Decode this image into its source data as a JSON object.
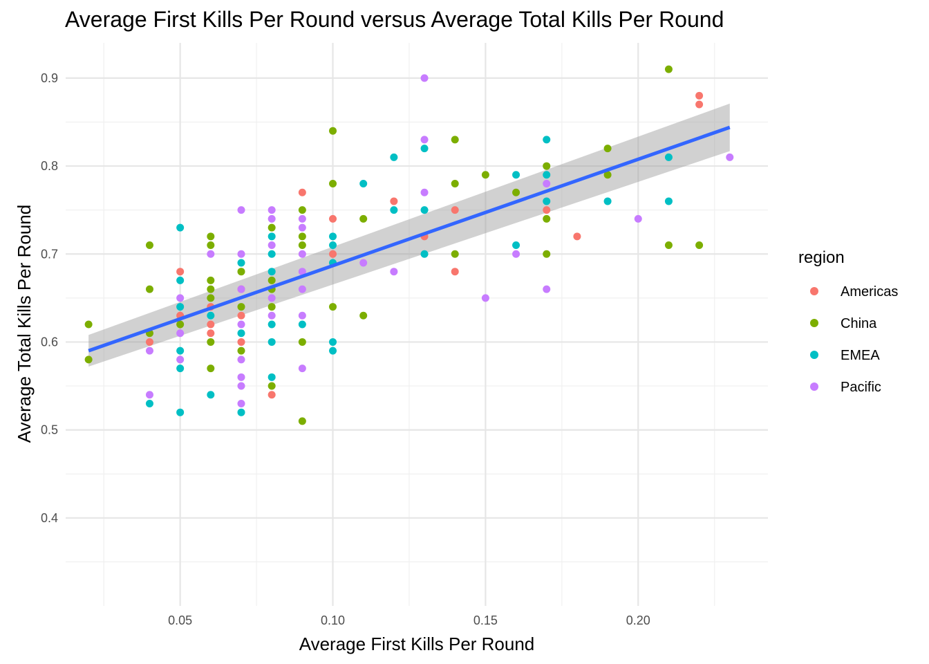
{
  "chart_data": {
    "type": "scatter",
    "title": "Average First Kills Per Round versus Average Total Kills Per Round",
    "xlabel": "Average First Kills Per Round",
    "ylabel": "Average Total Kills Per Round",
    "xlim": [
      0.0125,
      0.2425
    ],
    "ylim": [
      0.3,
      0.94
    ],
    "x_ticks": [
      0.05,
      0.1,
      0.15,
      0.2
    ],
    "x_tick_labels": [
      "0.05",
      "0.10",
      "0.15",
      "0.20"
    ],
    "x_minor_ticks": [
      0.025,
      0.075,
      0.125,
      0.175,
      0.225
    ],
    "y_ticks": [
      0.4,
      0.5,
      0.6,
      0.7,
      0.8,
      0.9
    ],
    "y_tick_labels": [
      "0.4",
      "0.5",
      "0.6",
      "0.7",
      "0.8",
      "0.9"
    ],
    "y_minor_ticks": [
      0.35,
      0.45,
      0.55,
      0.65,
      0.75,
      0.85
    ],
    "grid": true,
    "legend": {
      "title": "region",
      "placement": "right"
    },
    "series": [
      {
        "name": "Americas",
        "color": "#F8766D",
        "points": [
          [
            0.04,
            0.6
          ],
          [
            0.05,
            0.68
          ],
          [
            0.05,
            0.63
          ],
          [
            0.06,
            0.64
          ],
          [
            0.06,
            0.62
          ],
          [
            0.06,
            0.61
          ],
          [
            0.07,
            0.66
          ],
          [
            0.07,
            0.63
          ],
          [
            0.07,
            0.6
          ],
          [
            0.08,
            0.54
          ],
          [
            0.09,
            0.77
          ],
          [
            0.1,
            0.74
          ],
          [
            0.1,
            0.7
          ],
          [
            0.12,
            0.76
          ],
          [
            0.13,
            0.72
          ],
          [
            0.14,
            0.75
          ],
          [
            0.14,
            0.68
          ],
          [
            0.17,
            0.75
          ],
          [
            0.18,
            0.72
          ],
          [
            0.22,
            0.88
          ],
          [
            0.22,
            0.87
          ]
        ]
      },
      {
        "name": "China",
        "color": "#7CAE00",
        "points": [
          [
            0.02,
            0.62
          ],
          [
            0.02,
            0.58
          ],
          [
            0.04,
            0.71
          ],
          [
            0.04,
            0.66
          ],
          [
            0.04,
            0.61
          ],
          [
            0.05,
            0.62
          ],
          [
            0.06,
            0.72
          ],
          [
            0.06,
            0.71
          ],
          [
            0.06,
            0.67
          ],
          [
            0.06,
            0.66
          ],
          [
            0.06,
            0.65
          ],
          [
            0.06,
            0.6
          ],
          [
            0.06,
            0.57
          ],
          [
            0.07,
            0.68
          ],
          [
            0.07,
            0.64
          ],
          [
            0.07,
            0.59
          ],
          [
            0.08,
            0.73
          ],
          [
            0.08,
            0.67
          ],
          [
            0.08,
            0.66
          ],
          [
            0.08,
            0.64
          ],
          [
            0.08,
            0.55
          ],
          [
            0.09,
            0.75
          ],
          [
            0.09,
            0.72
          ],
          [
            0.09,
            0.71
          ],
          [
            0.09,
            0.6
          ],
          [
            0.09,
            0.51
          ],
          [
            0.1,
            0.84
          ],
          [
            0.1,
            0.78
          ],
          [
            0.1,
            0.64
          ],
          [
            0.11,
            0.74
          ],
          [
            0.11,
            0.63
          ],
          [
            0.14,
            0.83
          ],
          [
            0.14,
            0.78
          ],
          [
            0.14,
            0.7
          ],
          [
            0.15,
            0.79
          ],
          [
            0.16,
            0.77
          ],
          [
            0.17,
            0.8
          ],
          [
            0.17,
            0.74
          ],
          [
            0.17,
            0.7
          ],
          [
            0.19,
            0.82
          ],
          [
            0.19,
            0.79
          ],
          [
            0.21,
            0.91
          ],
          [
            0.21,
            0.71
          ],
          [
            0.22,
            0.71
          ]
        ]
      },
      {
        "name": "EMEA",
        "color": "#00BFC4",
        "points": [
          [
            0.04,
            0.53
          ],
          [
            0.05,
            0.73
          ],
          [
            0.05,
            0.67
          ],
          [
            0.05,
            0.64
          ],
          [
            0.05,
            0.59
          ],
          [
            0.05,
            0.57
          ],
          [
            0.05,
            0.52
          ],
          [
            0.06,
            0.63
          ],
          [
            0.06,
            0.54
          ],
          [
            0.07,
            0.69
          ],
          [
            0.07,
            0.61
          ],
          [
            0.07,
            0.52
          ],
          [
            0.08,
            0.72
          ],
          [
            0.08,
            0.7
          ],
          [
            0.08,
            0.68
          ],
          [
            0.08,
            0.62
          ],
          [
            0.08,
            0.6
          ],
          [
            0.08,
            0.56
          ],
          [
            0.09,
            0.62
          ],
          [
            0.1,
            0.72
          ],
          [
            0.1,
            0.71
          ],
          [
            0.1,
            0.69
          ],
          [
            0.1,
            0.6
          ],
          [
            0.1,
            0.59
          ],
          [
            0.11,
            0.78
          ],
          [
            0.12,
            0.81
          ],
          [
            0.12,
            0.75
          ],
          [
            0.13,
            0.82
          ],
          [
            0.13,
            0.75
          ],
          [
            0.13,
            0.7
          ],
          [
            0.16,
            0.79
          ],
          [
            0.16,
            0.71
          ],
          [
            0.17,
            0.83
          ],
          [
            0.17,
            0.79
          ],
          [
            0.17,
            0.76
          ],
          [
            0.19,
            0.76
          ],
          [
            0.21,
            0.81
          ],
          [
            0.21,
            0.76
          ]
        ]
      },
      {
        "name": "Pacific",
        "color": "#C77CFF",
        "points": [
          [
            0.04,
            0.59
          ],
          [
            0.04,
            0.54
          ],
          [
            0.05,
            0.65
          ],
          [
            0.05,
            0.61
          ],
          [
            0.05,
            0.58
          ],
          [
            0.06,
            0.7
          ],
          [
            0.07,
            0.75
          ],
          [
            0.07,
            0.7
          ],
          [
            0.07,
            0.66
          ],
          [
            0.07,
            0.62
          ],
          [
            0.07,
            0.58
          ],
          [
            0.07,
            0.56
          ],
          [
            0.07,
            0.55
          ],
          [
            0.07,
            0.53
          ],
          [
            0.08,
            0.75
          ],
          [
            0.08,
            0.74
          ],
          [
            0.08,
            0.71
          ],
          [
            0.08,
            0.65
          ],
          [
            0.08,
            0.63
          ],
          [
            0.09,
            0.74
          ],
          [
            0.09,
            0.73
          ],
          [
            0.09,
            0.7
          ],
          [
            0.09,
            0.68
          ],
          [
            0.09,
            0.66
          ],
          [
            0.09,
            0.63
          ],
          [
            0.09,
            0.57
          ],
          [
            0.11,
            0.69
          ],
          [
            0.12,
            0.68
          ],
          [
            0.13,
            0.9
          ],
          [
            0.13,
            0.83
          ],
          [
            0.13,
            0.77
          ],
          [
            0.15,
            0.65
          ],
          [
            0.16,
            0.7
          ],
          [
            0.17,
            0.78
          ],
          [
            0.17,
            0.66
          ],
          [
            0.2,
            0.74
          ],
          [
            0.23,
            0.81
          ]
        ]
      }
    ],
    "trend": {
      "method": "linear",
      "color": "#3366FF",
      "band_color": "#999999",
      "x": [
        0.02,
        0.23
      ],
      "y": [
        0.59,
        0.844
      ],
      "band_lower": [
        0.572,
        0.817
      ],
      "band_upper": [
        0.608,
        0.871
      ]
    }
  }
}
